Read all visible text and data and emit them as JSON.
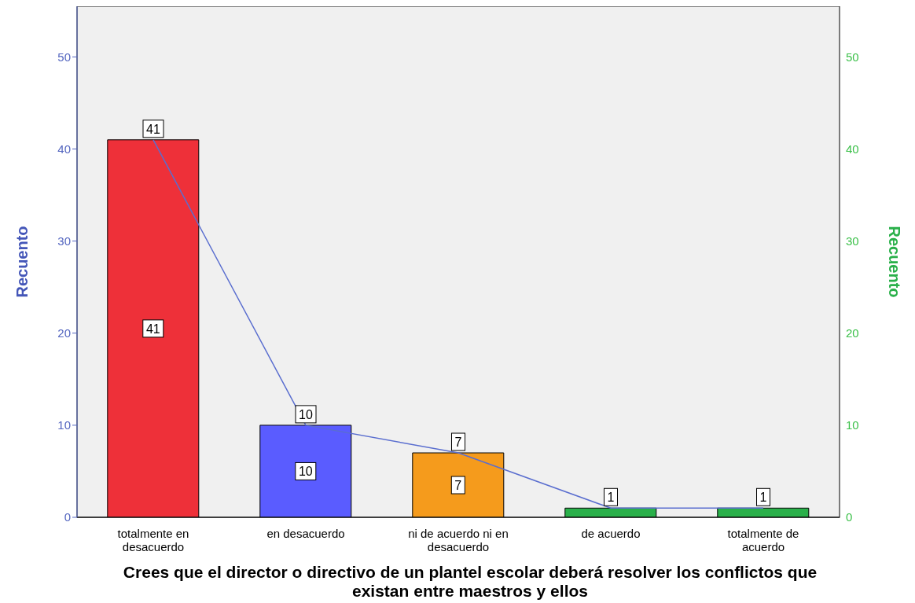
{
  "chart_data": {
    "type": "bar",
    "xlabel": "Crees que el director o directivo de un plantel escolar deberá resolver los conflictos que existan entre maestros y ellos",
    "ylabel": "Recuento",
    "y2label": "Recuento",
    "categories": [
      "totalmente en desacuerdo",
      "en desacuerdo",
      "ni de acuerdo ni en desacuerdo",
      "de acuerdo",
      "totalmente de acuerdo"
    ],
    "series": [
      {
        "colors": [
          "#ee3039",
          "#5a5cff",
          "#f59b1c",
          "#2ab04a",
          "#2ab04a"
        ],
        "values": [
          41,
          10,
          7,
          1,
          1
        ],
        "value_labels": [
          "41",
          "10",
          "7",
          null,
          null
        ]
      },
      {
        "type": "line",
        "axis": "y2",
        "color": "#5a6ecf",
        "values": [
          41,
          10,
          7,
          1,
          1
        ],
        "value_labels": [
          "41",
          "10",
          "7",
          "1",
          "1"
        ]
      }
    ],
    "ylim": [
      0,
      55.5
    ],
    "yticks": [
      0,
      10,
      20,
      30,
      40,
      50
    ],
    "y2lim": [
      0,
      55.5
    ],
    "y2ticks": [
      0,
      10,
      20,
      30,
      40,
      50
    ]
  }
}
